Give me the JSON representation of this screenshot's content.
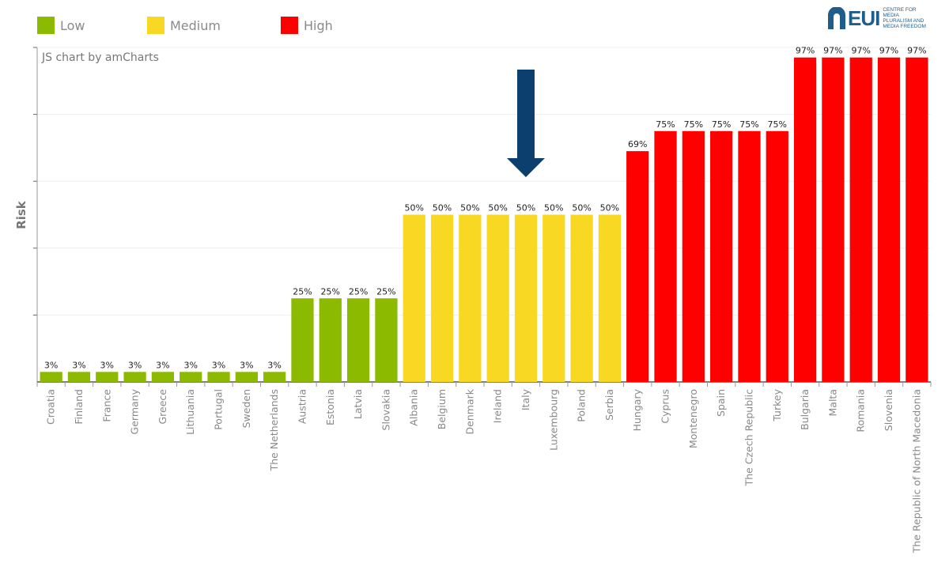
{
  "legend": {
    "items": [
      {
        "label": "Low",
        "color": "#8cba00"
      },
      {
        "label": "Medium",
        "color": "#f9d823"
      },
      {
        "label": "High",
        "color": "#ff0000"
      }
    ]
  },
  "credit": "JS chart by amCharts",
  "logo": {
    "name": "EUI",
    "subtitle_lines": [
      "CENTRE FOR MEDIA",
      "PLURALISM AND",
      "MEDIA FREEDOM"
    ]
  },
  "arrow": {
    "color": "#0d3f6e",
    "points_to": "Italy"
  },
  "chart_data": {
    "type": "bar",
    "title": "",
    "xlabel": "",
    "ylabel": "Risk",
    "ylim": [
      0,
      100
    ],
    "grid": true,
    "value_format": "percent",
    "colors": {
      "Low": "#8cba00",
      "Medium": "#f9d823",
      "High": "#ff0000"
    },
    "categories": [
      "Croatia",
      "Finland",
      "France",
      "Germany",
      "Greece",
      "Lithuania",
      "Portugal",
      "Sweden",
      "The Netherlands",
      "Austria",
      "Estonia",
      "Latvia",
      "Slovakia",
      "Albania",
      "Belgium",
      "Denmark",
      "Ireland",
      "Italy",
      "Luxembourg",
      "Poland",
      "Serbia",
      "Hungary",
      "Cyprus",
      "Montenegro",
      "Spain",
      "The Czech Republic",
      "Turkey",
      "Bulgaria",
      "Malta",
      "Romania",
      "Slovenia",
      "The Republic of North Macedonia"
    ],
    "values": [
      3,
      3,
      3,
      3,
      3,
      3,
      3,
      3,
      3,
      25,
      25,
      25,
      25,
      50,
      50,
      50,
      50,
      50,
      50,
      50,
      50,
      69,
      75,
      75,
      75,
      75,
      75,
      97,
      97,
      97,
      97,
      97
    ],
    "risk_levels": [
      "Low",
      "Low",
      "Low",
      "Low",
      "Low",
      "Low",
      "Low",
      "Low",
      "Low",
      "Low",
      "Low",
      "Low",
      "Low",
      "Medium",
      "Medium",
      "Medium",
      "Medium",
      "Medium",
      "Medium",
      "Medium",
      "Medium",
      "High",
      "High",
      "High",
      "High",
      "High",
      "High",
      "High",
      "High",
      "High",
      "High",
      "High"
    ],
    "value_labels": [
      "3%",
      "3%",
      "3%",
      "3%",
      "3%",
      "3%",
      "3%",
      "3%",
      "3%",
      "25%",
      "25%",
      "25%",
      "25%",
      "50%",
      "50%",
      "50%",
      "50%",
      "50%",
      "50%",
      "50%",
      "50%",
      "69%",
      "75%",
      "75%",
      "75%",
      "75%",
      "75%",
      "97%",
      "97%",
      "97%",
      "97%",
      "97%"
    ]
  }
}
